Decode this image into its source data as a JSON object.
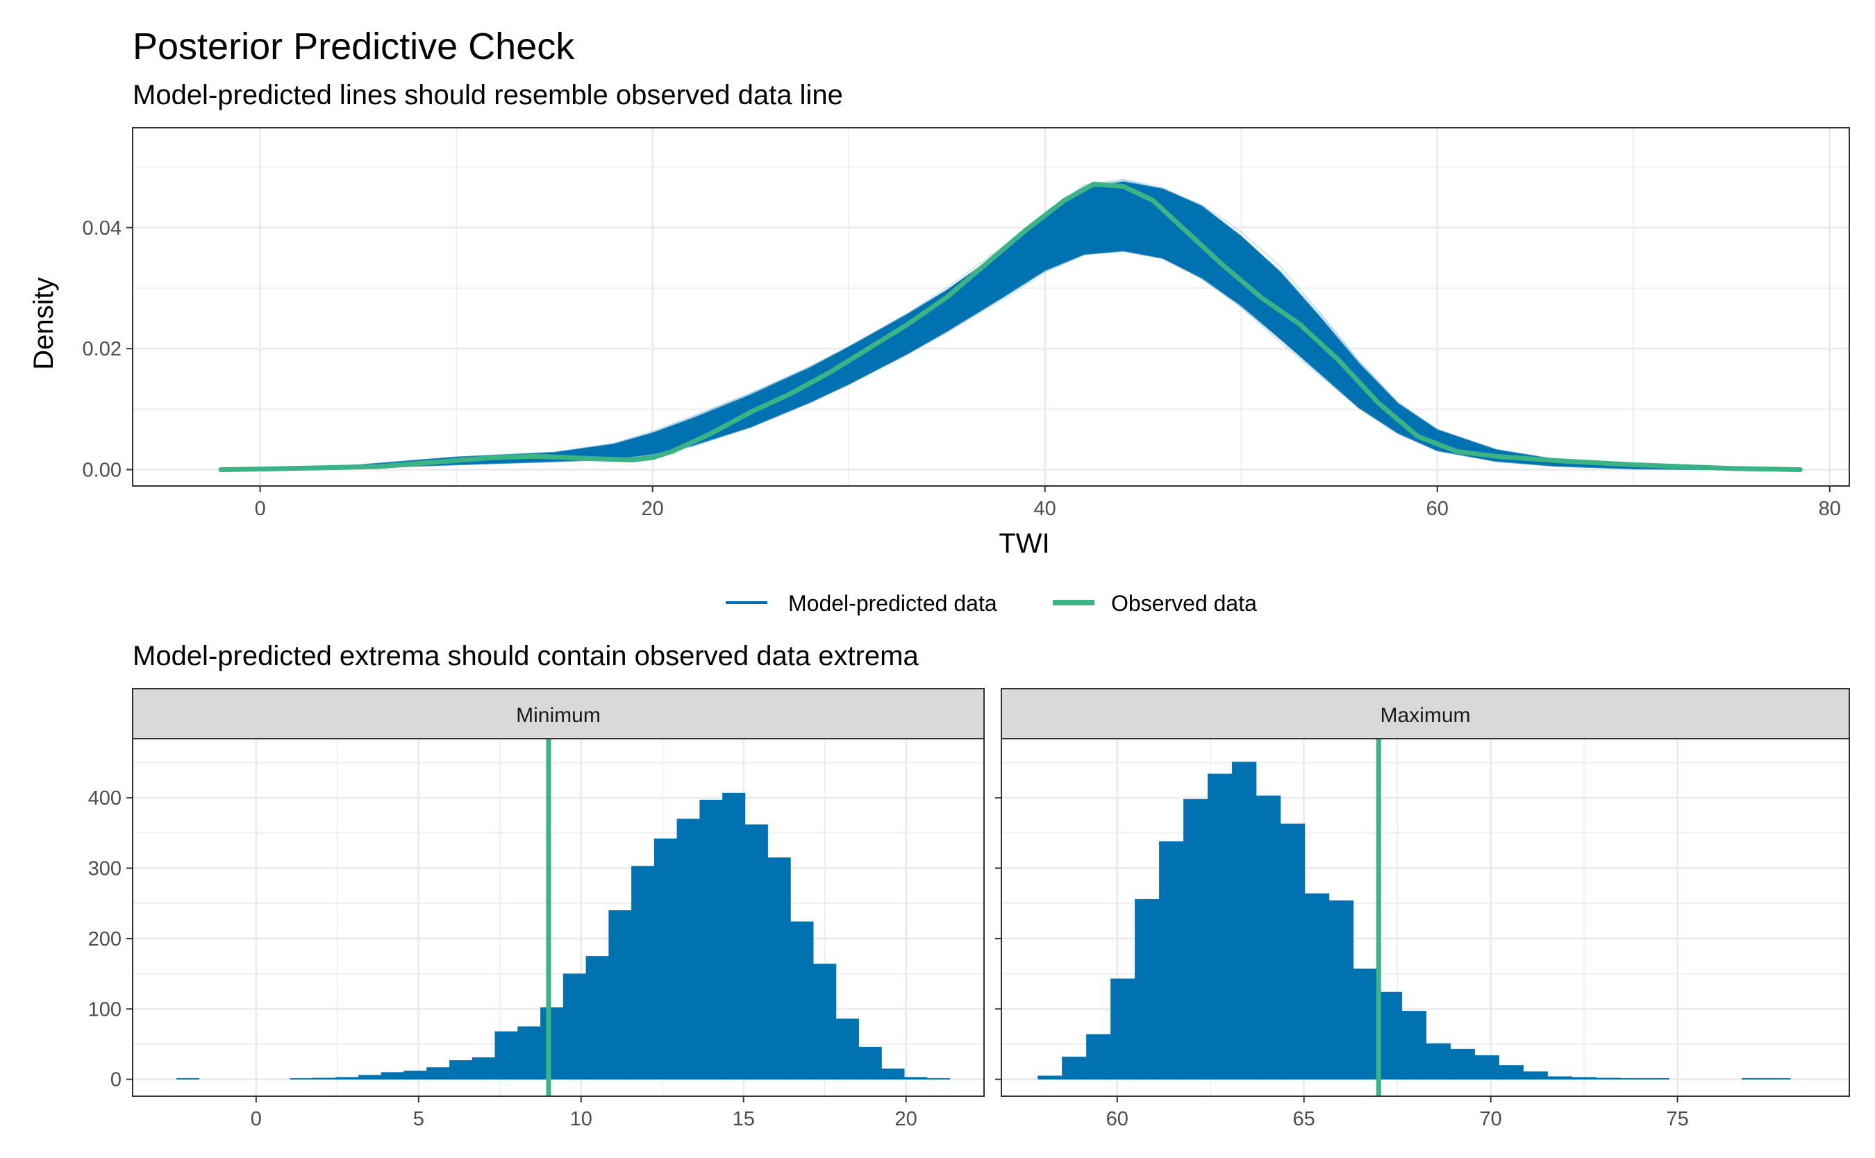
{
  "title": "Posterior Predictive Check",
  "subtitle": "Model-predicted lines should resemble observed data line",
  "legend": {
    "items": [
      {
        "label": "Model-predicted data",
        "color": "#0072B2"
      },
      {
        "label": "Observed data",
        "color": "#3BB385"
      }
    ],
    "placement": "bottom-center"
  },
  "extrema_title": "Model-predicted extrema should contain observed data extrema",
  "colors": {
    "predicted": "#0072B2",
    "observed": "#3BB385",
    "panel_border": "#333333",
    "grid": "#EBEBEB",
    "strip_fill": "#D9D9D9"
  },
  "chart_data": [
    {
      "type": "line",
      "xlabel": "TWI",
      "ylabel": "Density",
      "xlim": [
        -6.5,
        81
      ],
      "ylim": [
        -0.0027,
        0.0565
      ],
      "xticks": [
        0,
        20,
        40,
        60,
        80
      ],
      "xtick_labels": [
        "0",
        "20",
        "40",
        "60",
        "80"
      ],
      "yticks": [
        0,
        0.02,
        0.04
      ],
      "ytick_labels": [
        "0.00",
        "0.02",
        "0.04"
      ],
      "grid": true,
      "series": [
        {
          "name": "Model-predicted data",
          "kind": "band",
          "x": [
            -2,
            5,
            10,
            15,
            18,
            20,
            22,
            25,
            28,
            30,
            33,
            35,
            38,
            40,
            42,
            44,
            46,
            48,
            50,
            52,
            54,
            56,
            58,
            60,
            63,
            66,
            70,
            75,
            78.5
          ],
          "y_low": [
            0,
            0.0002,
            0.0007,
            0.0012,
            0.0015,
            0.0022,
            0.0035,
            0.0065,
            0.0105,
            0.0135,
            0.0185,
            0.0222,
            0.028,
            0.032,
            0.0345,
            0.035,
            0.0338,
            0.0305,
            0.026,
            0.0205,
            0.015,
            0.0095,
            0.0055,
            0.0028,
            0.0012,
            0.0005,
            0.0001,
            0,
            0
          ],
          "y_high": [
            0,
            0.0008,
            0.0022,
            0.003,
            0.0045,
            0.0065,
            0.009,
            0.013,
            0.0175,
            0.021,
            0.0265,
            0.0305,
            0.0375,
            0.043,
            0.0478,
            0.049,
            0.0478,
            0.045,
            0.04,
            0.034,
            0.0265,
            0.0185,
            0.0115,
            0.007,
            0.0035,
            0.0018,
            0.0008,
            0.0002,
            0
          ]
        },
        {
          "name": "Observed data",
          "x": [
            -2,
            0,
            3,
            6,
            8,
            10,
            12,
            14,
            15,
            17,
            19,
            20,
            21,
            22,
            23,
            25,
            27,
            29,
            31,
            33,
            35,
            37,
            39,
            41,
            42.5,
            44,
            45.5,
            47,
            49,
            51,
            53,
            55,
            57,
            59,
            61,
            63,
            66,
            70,
            75,
            78.5
          ],
          "y": [
            0,
            0.0001,
            0.0003,
            0.0005,
            0.001,
            0.0015,
            0.002,
            0.0022,
            0.0021,
            0.0018,
            0.0016,
            0.002,
            0.003,
            0.0045,
            0.006,
            0.0095,
            0.0125,
            0.016,
            0.02,
            0.024,
            0.0285,
            0.034,
            0.0395,
            0.0445,
            0.0472,
            0.0468,
            0.0445,
            0.04,
            0.034,
            0.0285,
            0.024,
            0.018,
            0.011,
            0.0055,
            0.003,
            0.0022,
            0.0015,
            0.0008,
            0.0002,
            0
          ]
        }
      ]
    },
    {
      "type": "bar",
      "strip": "Minimum",
      "xlim": [
        -3.8,
        22.4
      ],
      "ylim": [
        -24,
        484
      ],
      "xticks": [
        0,
        5,
        10,
        15,
        20
      ],
      "xtick_labels": [
        "0",
        "5",
        "10",
        "15",
        "20"
      ],
      "yticks": [
        0,
        100,
        200,
        300,
        400
      ],
      "ytick_labels": [
        "0",
        "100",
        "200",
        "300",
        "400"
      ],
      "grid": true,
      "bin_width": 0.7,
      "bin_centers": [
        -2.1,
        -1.4,
        -0.7,
        0,
        0.7,
        1.4,
        2.1,
        2.8,
        3.5,
        4.2,
        4.9,
        5.6,
        6.3,
        7,
        7.7,
        8.4,
        9.1,
        9.8,
        10.5,
        11.2,
        11.9,
        12.6,
        13.3,
        14,
        14.7,
        15.4,
        16.1,
        16.8,
        17.5,
        18.2,
        18.9,
        19.6,
        20.3,
        21
      ],
      "counts": [
        1,
        0,
        0,
        0,
        0,
        1,
        2,
        3,
        6,
        10,
        12,
        17,
        27,
        31,
        68,
        75,
        102,
        150,
        175,
        240,
        303,
        342,
        370,
        397,
        407,
        362,
        315,
        224,
        164,
        86,
        46,
        15,
        3,
        1
      ],
      "observed_value": 9
    },
    {
      "type": "bar",
      "strip": "Maximum",
      "xlim": [
        56.9,
        79.6
      ],
      "ylim": [
        -24,
        484
      ],
      "xticks": [
        60,
        65,
        70,
        75
      ],
      "xtick_labels": [
        "60",
        "65",
        "70",
        "75"
      ],
      "yticks": [
        0,
        100,
        200,
        300,
        400
      ],
      "grid": true,
      "bin_width": 0.65,
      "bin_centers": [
        58.2,
        58.85,
        59.5,
        60.15,
        60.8,
        61.45,
        62.1,
        62.75,
        63.4,
        64.05,
        64.7,
        65.35,
        66,
        66.65,
        67.3,
        67.95,
        68.6,
        69.25,
        69.9,
        70.55,
        71.2,
        71.85,
        72.5,
        73.15,
        73.8,
        74.45,
        75.1,
        75.75,
        76.4,
        77.05,
        77.7,
        78.35
      ],
      "counts": [
        5,
        32,
        64,
        143,
        256,
        338,
        398,
        434,
        451,
        403,
        363,
        264,
        254,
        157,
        124,
        97,
        51,
        43,
        34,
        20,
        11,
        4,
        3,
        2,
        1,
        1,
        0,
        0,
        0,
        1,
        1,
        0
      ],
      "observed_value": 67
    }
  ]
}
